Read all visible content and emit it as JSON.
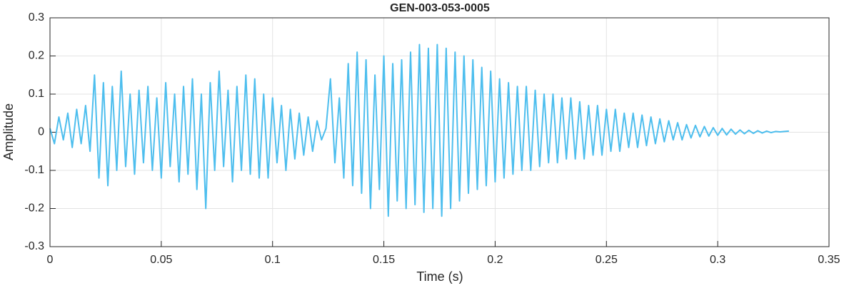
{
  "chart_data": {
    "type": "line",
    "title": "GEN-003-053-0005",
    "xlabel": "Time (s)",
    "ylabel": "Amplitude",
    "color": "#4DBEEE",
    "grid": true,
    "xlim": [
      0,
      0.35
    ],
    "xticks": [
      0,
      0.05,
      0.1,
      0.15,
      0.2,
      0.25,
      0.3,
      0.35
    ],
    "ylim": [
      -0.3,
      0.3
    ],
    "yticks": [
      -0.3,
      -0.2,
      -0.1,
      0,
      0.1,
      0.2,
      0.3
    ],
    "x": [
      0,
      0.002,
      0.004,
      0.006,
      0.008,
      0.01,
      0.012,
      0.014,
      0.016,
      0.018,
      0.02,
      0.022,
      0.024,
      0.026,
      0.028,
      0.03,
      0.032,
      0.034,
      0.036,
      0.038,
      0.04,
      0.042,
      0.044,
      0.046,
      0.048,
      0.05,
      0.052,
      0.054,
      0.056,
      0.058,
      0.06,
      0.062,
      0.064,
      0.066,
      0.068,
      0.07,
      0.072,
      0.074,
      0.076,
      0.078,
      0.08,
      0.082,
      0.084,
      0.086,
      0.088,
      0.09,
      0.092,
      0.094,
      0.096,
      0.098,
      0.1,
      0.102,
      0.104,
      0.106,
      0.108,
      0.11,
      0.112,
      0.114,
      0.116,
      0.118,
      0.12,
      0.122,
      0.124,
      0.126,
      0.128,
      0.13,
      0.132,
      0.134,
      0.136,
      0.138,
      0.14,
      0.142,
      0.144,
      0.146,
      0.148,
      0.15,
      0.152,
      0.154,
      0.156,
      0.158,
      0.16,
      0.162,
      0.164,
      0.166,
      0.168,
      0.17,
      0.172,
      0.174,
      0.176,
      0.178,
      0.18,
      0.182,
      0.184,
      0.186,
      0.188,
      0.19,
      0.192,
      0.194,
      0.196,
      0.198,
      0.2,
      0.202,
      0.204,
      0.206,
      0.208,
      0.21,
      0.212,
      0.214,
      0.216,
      0.218,
      0.22,
      0.222,
      0.224,
      0.226,
      0.228,
      0.23,
      0.232,
      0.234,
      0.236,
      0.238,
      0.24,
      0.242,
      0.244,
      0.246,
      0.248,
      0.25,
      0.252,
      0.254,
      0.256,
      0.258,
      0.26,
      0.262,
      0.264,
      0.266,
      0.268,
      0.27,
      0.272,
      0.274,
      0.276,
      0.278,
      0.28,
      0.282,
      0.284,
      0.286,
      0.288,
      0.29,
      0.292,
      0.294,
      0.296,
      0.298,
      0.3,
      0.302,
      0.304,
      0.306,
      0.308,
      0.31,
      0.312,
      0.314,
      0.316,
      0.318,
      0.32,
      0.322,
      0.324,
      0.326,
      0.328,
      0.33,
      0.332
    ],
    "values": [
      0.01,
      -0.03,
      0.04,
      -0.02,
      0.05,
      -0.04,
      0.06,
      -0.03,
      0.07,
      -0.05,
      0.15,
      -0.12,
      0.13,
      -0.14,
      0.12,
      -0.1,
      0.16,
      -0.09,
      0.1,
      -0.11,
      0.11,
      -0.08,
      0.12,
      -0.1,
      0.09,
      -0.12,
      0.13,
      -0.09,
      0.1,
      -0.13,
      0.12,
      -0.11,
      0.14,
      -0.15,
      0.1,
      -0.2,
      0.13,
      -0.1,
      0.16,
      -0.09,
      0.11,
      -0.13,
      0.12,
      -0.1,
      0.15,
      -0.11,
      0.14,
      -0.12,
      0.1,
      -0.12,
      0.09,
      -0.08,
      0.07,
      -0.1,
      0.06,
      -0.07,
      0.05,
      -0.06,
      0.04,
      -0.05,
      0.03,
      -0.02,
      0.01,
      0.14,
      -0.08,
      0.09,
      -0.12,
      0.18,
      -0.14,
      0.21,
      -0.16,
      0.19,
      -0.2,
      0.15,
      -0.15,
      0.2,
      -0.22,
      0.18,
      -0.18,
      0.19,
      -0.2,
      0.21,
      -0.19,
      0.23,
      -0.21,
      0.22,
      -0.2,
      0.23,
      -0.22,
      0.22,
      -0.2,
      0.21,
      -0.18,
      0.2,
      -0.16,
      0.19,
      -0.15,
      0.17,
      -0.14,
      0.16,
      -0.13,
      0.14,
      -0.12,
      0.13,
      -0.11,
      0.12,
      -0.1,
      0.12,
      -0.1,
      0.11,
      -0.09,
      0.1,
      -0.08,
      0.1,
      -0.08,
      0.09,
      -0.07,
      0.09,
      -0.07,
      0.08,
      -0.07,
      0.07,
      -0.06,
      0.07,
      -0.06,
      0.06,
      -0.05,
      0.06,
      -0.05,
      0.05,
      -0.04,
      0.05,
      -0.04,
      0.045,
      -0.035,
      0.04,
      -0.03,
      0.035,
      -0.025,
      0.03,
      -0.02,
      0.025,
      -0.02,
      0.02,
      -0.015,
      0.018,
      -0.012,
      0.015,
      -0.01,
      0.012,
      -0.008,
      0.01,
      -0.007,
      0.008,
      -0.005,
      0.006,
      -0.004,
      0.005,
      -0.003,
      0.004,
      -0.002,
      0.003,
      -0.001,
      0.002,
      0.001,
      0.002,
      0.003
    ]
  }
}
